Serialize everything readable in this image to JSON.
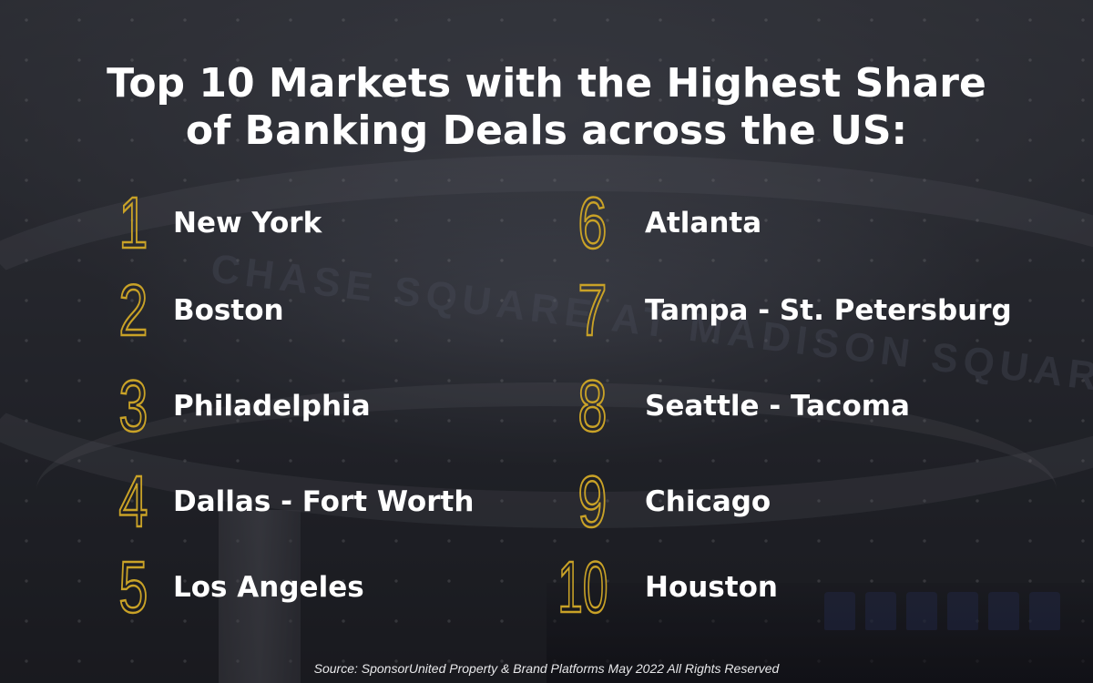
{
  "title": {
    "line1": "Top 10 Markets with the Highest Share",
    "line2": "of Banking Deals across the US:"
  },
  "markets": [
    {
      "rank": "1",
      "name": "New York"
    },
    {
      "rank": "2",
      "name": "Boston"
    },
    {
      "rank": "3",
      "name": "Philadelphia"
    },
    {
      "rank": "4",
      "name": "Dallas - Fort Worth"
    },
    {
      "rank": "5",
      "name": "Los Angeles"
    },
    {
      "rank": "6",
      "name": "Atlanta"
    },
    {
      "rank": "7",
      "name": "Tampa - St. Petersburg"
    },
    {
      "rank": "8",
      "name": "Seattle - Tacoma"
    },
    {
      "rank": "9",
      "name": "Chicago"
    },
    {
      "rank": "10",
      "name": "Houston"
    }
  ],
  "background_sign": "CHASE  SQUARE AT MADISON SQUARE GARDEN",
  "source": "Source: SponsorUnited Property & Brand Platforms May 2022 All Rights Reserved",
  "colors": {
    "accent_gold": "#c9a227",
    "text": "#ffffff"
  }
}
